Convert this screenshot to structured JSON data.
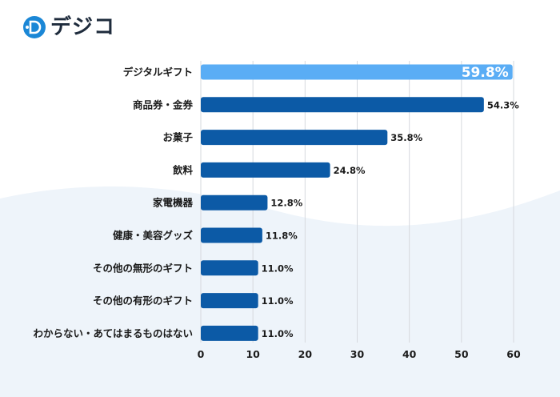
{
  "brand": {
    "name": "デジコ",
    "logo_icon": "d-logo-icon",
    "accent": "#1b87d6"
  },
  "colors": {
    "bar": "#0c5aa6",
    "highlight_bar": "#5aadf5",
    "grid": "#d6d9de",
    "wave": "#eef4fa"
  },
  "chart_data": {
    "type": "bar",
    "orientation": "horizontal",
    "title": "",
    "xlabel": "",
    "ylabel": "",
    "categories": [
      "デジタルギフト",
      "商品券・金券",
      "お菓子",
      "飲料",
      "家電機器",
      "健康・美容グッズ",
      "その他の無形のギフト",
      "その他の有形のギフト",
      "わからない・あてはまるものはない"
    ],
    "values": [
      59.8,
      54.3,
      35.8,
      24.8,
      12.8,
      11.8,
      11.0,
      11.0,
      11.0
    ],
    "value_labels": [
      "59.8%",
      "54.3%",
      "35.8%",
      "24.8%",
      "12.8%",
      "11.8%",
      "11.0%",
      "11.0%",
      "11.0%"
    ],
    "highlight_index": 0,
    "xlim": [
      0,
      60
    ],
    "xticks": [
      0,
      10,
      20,
      30,
      40,
      50,
      60
    ],
    "grid": "vertical"
  }
}
